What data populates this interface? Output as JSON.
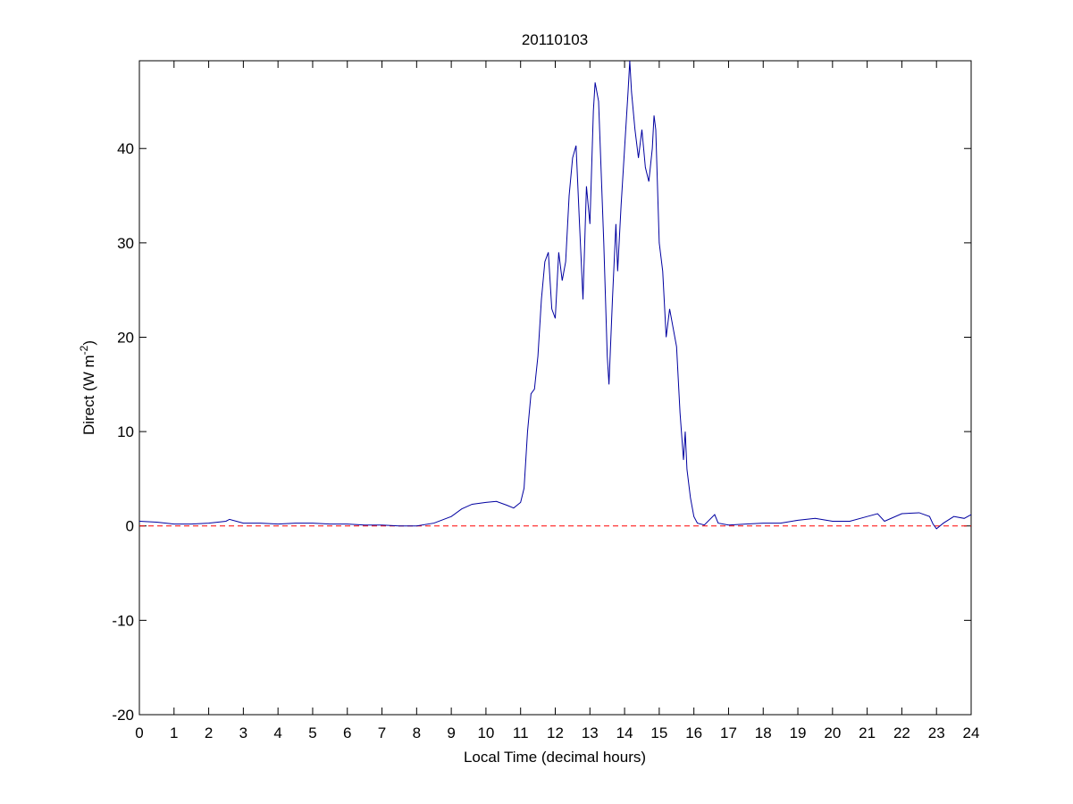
{
  "chart_data": {
    "type": "line",
    "title": "20110103",
    "xlabel": "Local Time (decimal hours)",
    "ylabel": [
      "Direct (W m",
      "-2",
      ")"
    ],
    "x": [
      0,
      0.5,
      1,
      1.5,
      2,
      2.5,
      2.6,
      3,
      3.5,
      4,
      4.5,
      5,
      5.5,
      6,
      6.5,
      7,
      7.5,
      8,
      8.5,
      9,
      9.3,
      9.6,
      10,
      10.3,
      10.6,
      10.8,
      11,
      11.1,
      11.2,
      11.3,
      11.4,
      11.5,
      11.6,
      11.7,
      11.8,
      11.9,
      12,
      12.1,
      12.2,
      12.3,
      12.4,
      12.5,
      12.6,
      12.7,
      12.8,
      12.9,
      13,
      13.1,
      13.15,
      13.25,
      13.3,
      13.4,
      13.5,
      13.55,
      13.65,
      13.75,
      13.8,
      13.9,
      14,
      14.1,
      14.15,
      14.2,
      14.3,
      14.4,
      14.5,
      14.6,
      14.7,
      14.8,
      14.85,
      14.9,
      15,
      15.1,
      15.2,
      15.3,
      15.4,
      15.5,
      15.6,
      15.7,
      15.75,
      15.8,
      15.9,
      16,
      16.1,
      16.3,
      16.6,
      16.7,
      17,
      17.5,
      18,
      18.5,
      19,
      19.5,
      20,
      20.5,
      21,
      21.3,
      21.5,
      22,
      22.5,
      22.8,
      22.9,
      23,
      23.2,
      23.5,
      23.8,
      24
    ],
    "series": [
      {
        "name": "Direct",
        "color": "#0000a0",
        "values": [
          0.5,
          0.4,
          0.2,
          0.2,
          0.3,
          0.5,
          0.7,
          0.3,
          0.3,
          0.2,
          0.3,
          0.3,
          0.2,
          0.2,
          0.1,
          0.1,
          0,
          0,
          0.3,
          1,
          1.8,
          2.3,
          2.5,
          2.6,
          2.2,
          1.9,
          2.5,
          4,
          10,
          14,
          14.5,
          18,
          24,
          28,
          29,
          23,
          22,
          29,
          26,
          28,
          35,
          39,
          40.3,
          32,
          24,
          36,
          32,
          44,
          47,
          45,
          40,
          30,
          18,
          15,
          24,
          32,
          27,
          34,
          40,
          46,
          49.3,
          46,
          42,
          39,
          42,
          38,
          36.5,
          40,
          43.5,
          42,
          30,
          27,
          20,
          23,
          21,
          19,
          12,
          7,
          10,
          6,
          3,
          1,
          0.3,
          0.1,
          1.2,
          0.3,
          0.1,
          0.2,
          0.3,
          0.3,
          0.6,
          0.8,
          0.5,
          0.5,
          1,
          1.3,
          0.5,
          1.3,
          1.4,
          1,
          0.2,
          -0.3,
          0.3,
          1,
          0.8,
          1.2
        ]
      }
    ],
    "reference_line": {
      "value": 0,
      "color": "#ff0000"
    },
    "xlim": [
      0,
      24
    ],
    "xticks": [
      0,
      1,
      2,
      3,
      4,
      5,
      6,
      7,
      8,
      9,
      10,
      11,
      12,
      13,
      14,
      15,
      16,
      17,
      18,
      19,
      20,
      21,
      22,
      23,
      24
    ],
    "ylim": [
      -20,
      49.3
    ],
    "yticks": [
      -20,
      -10,
      0,
      10,
      20,
      30,
      40
    ]
  }
}
